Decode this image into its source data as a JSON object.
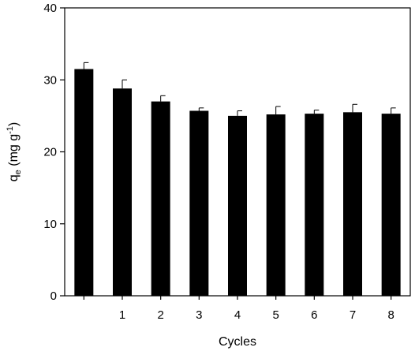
{
  "chart_data": {
    "type": "bar",
    "categories": [
      "",
      "1",
      "2",
      "3",
      "4",
      "5",
      "6",
      "7",
      "8"
    ],
    "values": [
      31.5,
      28.8,
      27.0,
      25.7,
      25.0,
      25.2,
      25.3,
      25.5,
      25.3
    ],
    "errors": [
      0.9,
      1.2,
      0.8,
      0.4,
      0.7,
      1.1,
      0.5,
      1.1,
      0.8
    ],
    "xlabel": "Cycles",
    "ylabel": {
      "base": "q",
      "sub": "e",
      "rest": " (mg g",
      "sup": "-1",
      "end": ")"
    },
    "ylim": [
      0,
      40
    ],
    "yticks": [
      0,
      10,
      20,
      30,
      40
    ],
    "grid": false,
    "legend": "none",
    "bar_color": "#000000"
  }
}
